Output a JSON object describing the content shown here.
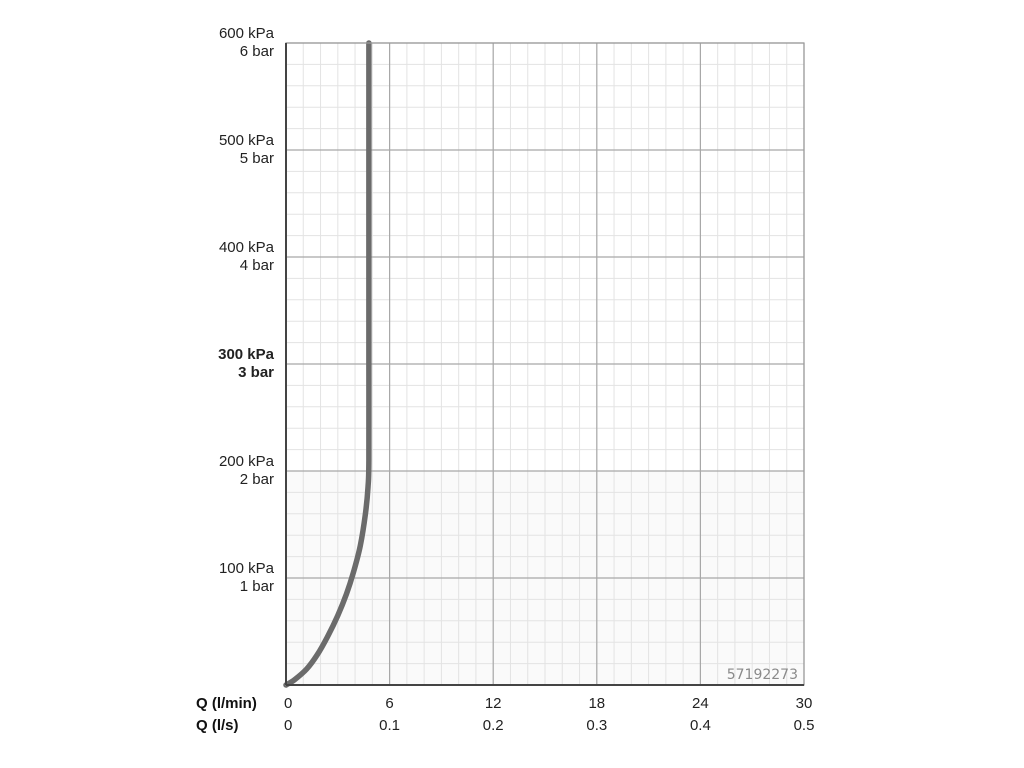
{
  "chart_data": {
    "type": "line",
    "title": "",
    "code": "57192273",
    "y_axis": {
      "range": [
        0,
        600
      ],
      "major_ticks": [
        {
          "value": 100,
          "kpa": "100 kPa",
          "bar": "1 bar",
          "bold": false
        },
        {
          "value": 200,
          "kpa": "200 kPa",
          "bar": "2 bar",
          "bold": false
        },
        {
          "value": 300,
          "kpa": "300 kPa",
          "bar": "3 bar",
          "bold": true
        },
        {
          "value": 400,
          "kpa": "400 kPa",
          "bar": "4 bar",
          "bold": false
        },
        {
          "value": 500,
          "kpa": "500 kPa",
          "bar": "5 bar",
          "bold": false
        },
        {
          "value": 600,
          "kpa": "600 kPa",
          "bar": "6 bar",
          "bold": false
        }
      ],
      "minor_step": 20
    },
    "x_axis": {
      "range": [
        0,
        30
      ],
      "primary_label": "Q (l/min)",
      "secondary_label": "Q (l/s)",
      "ticks": [
        {
          "value": 0,
          "lmin": "0",
          "ls": "0"
        },
        {
          "value": 6,
          "lmin": "6",
          "ls": "0.1"
        },
        {
          "value": 12,
          "lmin": "12",
          "ls": "0.2"
        },
        {
          "value": 18,
          "lmin": "18",
          "ls": "0.3"
        },
        {
          "value": 24,
          "lmin": "24",
          "ls": "0.4"
        },
        {
          "value": 30,
          "lmin": "30",
          "ls": "0.5"
        }
      ],
      "minor_step": 1
    },
    "grid": true,
    "series": [
      {
        "color": "#6b6b6b",
        "points": [
          [
            0,
            0
          ],
          [
            0.5,
            5
          ],
          [
            1.2,
            15
          ],
          [
            1.8,
            28
          ],
          [
            2.4,
            45
          ],
          [
            3.0,
            65
          ],
          [
            3.5,
            85
          ],
          [
            3.9,
            105
          ],
          [
            4.3,
            130
          ],
          [
            4.6,
            160
          ],
          [
            4.75,
            185
          ],
          [
            4.8,
            210
          ],
          [
            4.8,
            300
          ],
          [
            4.8,
            400
          ],
          [
            4.8,
            500
          ],
          [
            4.8,
            600
          ]
        ]
      }
    ]
  }
}
